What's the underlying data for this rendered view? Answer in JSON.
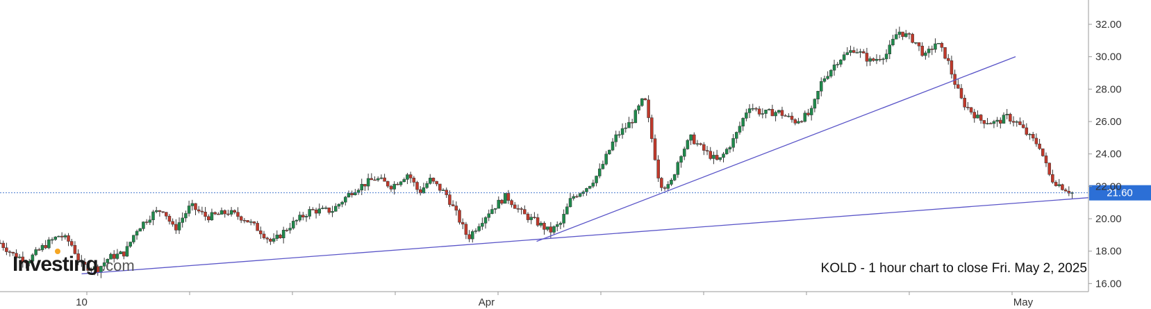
{
  "logo": {
    "brand": "Investing",
    "suffix": ".com",
    "accent": "#f5a623"
  },
  "annotation": "KOLD - 1 hour chart to close Fri. May 2, 2025",
  "chart_data": {
    "type": "candlestick",
    "ylim": [
      15.5,
      33.5
    ],
    "y_ticks": [
      "16.00",
      "18.00",
      "20.00",
      "22.00",
      "24.00",
      "26.00",
      "28.00",
      "30.00",
      "32.00"
    ],
    "x_ticks": [
      {
        "label": "10",
        "at": 0.075
      },
      {
        "label": "Apr",
        "at": 0.447
      },
      {
        "label": "May",
        "at": 0.94
      }
    ],
    "last_price": {
      "label": "21.60",
      "value": 21.6
    },
    "colors": {
      "up": "#1f8a4c",
      "down": "#c0392b",
      "trendline": "#5a55c8",
      "price_line": "#4a7bd0",
      "price_label_bg": "#2c6fd6"
    },
    "close_path": [
      [
        0.0,
        18.5
      ],
      [
        0.012,
        17.8
      ],
      [
        0.025,
        17.4
      ],
      [
        0.04,
        18.3
      ],
      [
        0.055,
        19.0
      ],
      [
        0.065,
        18.5
      ],
      [
        0.075,
        17.1
      ],
      [
        0.09,
        16.9
      ],
      [
        0.1,
        17.6
      ],
      [
        0.115,
        17.9
      ],
      [
        0.125,
        19.3
      ],
      [
        0.14,
        20.3
      ],
      [
        0.15,
        20.6
      ],
      [
        0.16,
        19.3
      ],
      [
        0.175,
        20.8
      ],
      [
        0.19,
        20.1
      ],
      [
        0.21,
        20.4
      ],
      [
        0.225,
        20.0
      ],
      [
        0.24,
        19.2
      ],
      [
        0.25,
        18.5
      ],
      [
        0.265,
        19.5
      ],
      [
        0.285,
        20.5
      ],
      [
        0.305,
        20.5
      ],
      [
        0.325,
        21.8
      ],
      [
        0.345,
        22.5
      ],
      [
        0.36,
        22.0
      ],
      [
        0.375,
        22.8
      ],
      [
        0.385,
        21.6
      ],
      [
        0.395,
        22.4
      ],
      [
        0.41,
        21.5
      ],
      [
        0.42,
        20.2
      ],
      [
        0.43,
        18.8
      ],
      [
        0.44,
        19.7
      ],
      [
        0.45,
        20.5
      ],
      [
        0.465,
        21.4
      ],
      [
        0.48,
        20.3
      ],
      [
        0.495,
        19.7
      ],
      [
        0.505,
        19.2
      ],
      [
        0.515,
        19.7
      ],
      [
        0.525,
        21.3
      ],
      [
        0.54,
        22.0
      ],
      [
        0.55,
        22.8
      ],
      [
        0.565,
        25.0
      ],
      [
        0.58,
        26.0
      ],
      [
        0.592,
        27.5
      ],
      [
        0.6,
        24.5
      ],
      [
        0.606,
        22.2
      ],
      [
        0.615,
        21.9
      ],
      [
        0.625,
        24.0
      ],
      [
        0.635,
        25.0
      ],
      [
        0.645,
        24.3
      ],
      [
        0.66,
        23.5
      ],
      [
        0.675,
        25.0
      ],
      [
        0.688,
        27.0
      ],
      [
        0.7,
        26.5
      ],
      [
        0.715,
        26.6
      ],
      [
        0.73,
        26.0
      ],
      [
        0.745,
        26.5
      ],
      [
        0.755,
        28.5
      ],
      [
        0.77,
        29.8
      ],
      [
        0.785,
        30.5
      ],
      [
        0.8,
        29.7
      ],
      [
        0.815,
        30.2
      ],
      [
        0.825,
        31.6
      ],
      [
        0.84,
        31.0
      ],
      [
        0.85,
        30.0
      ],
      [
        0.86,
        30.9
      ],
      [
        0.87,
        29.9
      ],
      [
        0.876,
        28.6
      ],
      [
        0.884,
        27.2
      ],
      [
        0.9,
        26.1
      ],
      [
        0.915,
        25.9
      ],
      [
        0.925,
        26.3
      ],
      [
        0.935,
        25.9
      ],
      [
        0.945,
        25.1
      ],
      [
        0.955,
        24.5
      ],
      [
        0.965,
        22.5
      ],
      [
        0.975,
        22.0
      ],
      [
        0.985,
        21.6
      ]
    ],
    "trendlines": [
      {
        "from": [
          0.075,
          16.6
        ],
        "to": [
          1.0,
          21.3
        ]
      },
      {
        "from": [
          0.493,
          18.6
        ],
        "to": [
          0.933,
          30.0
        ]
      }
    ]
  }
}
